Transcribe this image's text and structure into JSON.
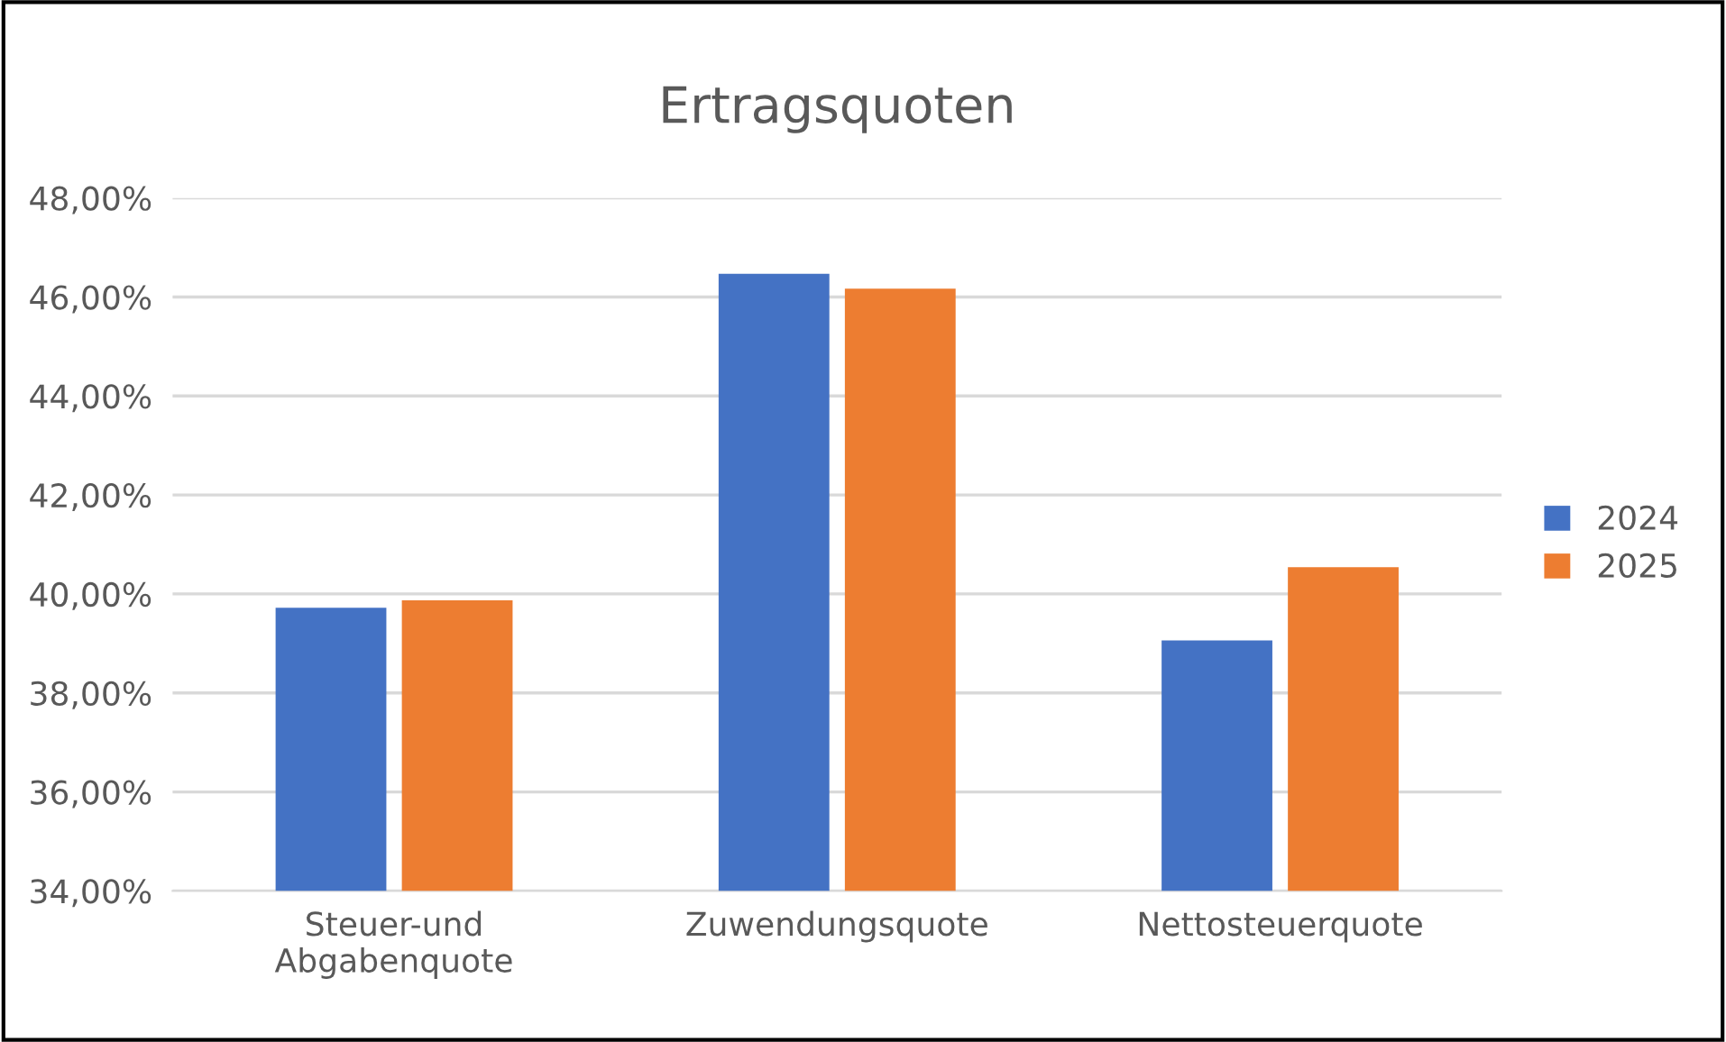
{
  "chart_data": {
    "type": "bar",
    "title": "Ertragsquoten",
    "categories": [
      "Steuer-und\nAbgabenquote",
      "Zuwendungsquote",
      "Nettosteuerquote"
    ],
    "series": [
      {
        "name": "2024",
        "color": "#4472c4",
        "values": [
          39.72,
          46.47,
          39.06
        ]
      },
      {
        "name": "2025",
        "color": "#ed7d31",
        "values": [
          39.87,
          46.17,
          40.54
        ]
      }
    ],
    "ylim": [
      34,
      48
    ],
    "yticks": [
      {
        "value": 34,
        "label": "34,00%"
      },
      {
        "value": 36,
        "label": "36,00%"
      },
      {
        "value": 38,
        "label": "38,00%"
      },
      {
        "value": 40,
        "label": "40,00%"
      },
      {
        "value": 42,
        "label": "42,00%"
      },
      {
        "value": 44,
        "label": "44,00%"
      },
      {
        "value": 46,
        "label": "46,00%"
      },
      {
        "value": 48,
        "label": "48,00%"
      }
    ],
    "grid": "y",
    "legend": "right"
  }
}
